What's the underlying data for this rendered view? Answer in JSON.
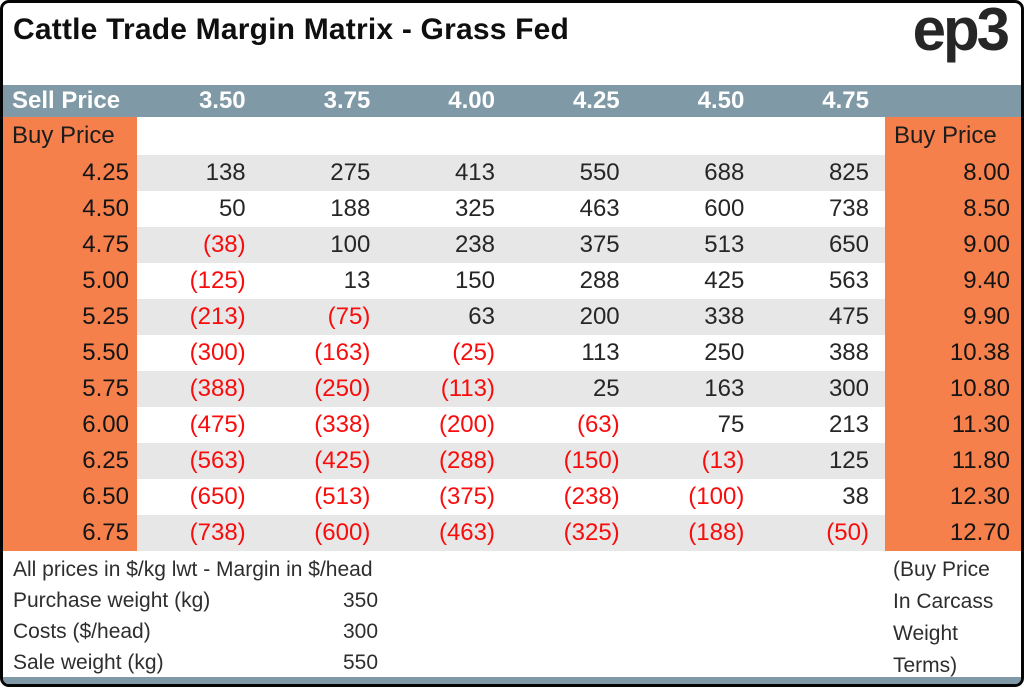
{
  "title": "Cattle Trade Margin Matrix - Grass Fed",
  "logo": "ep3",
  "chart_data": {
    "type": "table",
    "title": "Cattle Trade Margin Matrix - Grass Fed",
    "corner_label": "Sell Price",
    "left_axis_label": "Buy Price",
    "right_axis_label": "Buy Price",
    "sell_prices": [
      "3.50",
      "3.75",
      "4.00",
      "4.25",
      "4.50",
      "4.75"
    ],
    "rows": [
      {
        "buy": "4.25",
        "values": [
          "138",
          "275",
          "413",
          "550",
          "688",
          "825"
        ],
        "carcass": "8.00"
      },
      {
        "buy": "4.50",
        "values": [
          "50",
          "188",
          "325",
          "463",
          "600",
          "738"
        ],
        "carcass": "8.50"
      },
      {
        "buy": "4.75",
        "values": [
          "(38)",
          "100",
          "238",
          "375",
          "513",
          "650"
        ],
        "carcass": "9.00"
      },
      {
        "buy": "5.00",
        "values": [
          "(125)",
          "13",
          "150",
          "288",
          "425",
          "563"
        ],
        "carcass": "9.40"
      },
      {
        "buy": "5.25",
        "values": [
          "(213)",
          "(75)",
          "63",
          "200",
          "338",
          "475"
        ],
        "carcass": "9.90"
      },
      {
        "buy": "5.50",
        "values": [
          "(300)",
          "(163)",
          "(25)",
          "113",
          "250",
          "388"
        ],
        "carcass": "10.38"
      },
      {
        "buy": "5.75",
        "values": [
          "(388)",
          "(250)",
          "(113)",
          "25",
          "163",
          "300"
        ],
        "carcass": "10.80"
      },
      {
        "buy": "6.00",
        "values": [
          "(475)",
          "(338)",
          "(200)",
          "(63)",
          "75",
          "213"
        ],
        "carcass": "11.30"
      },
      {
        "buy": "6.25",
        "values": [
          "(563)",
          "(425)",
          "(288)",
          "(150)",
          "(13)",
          "125"
        ],
        "carcass": "11.80"
      },
      {
        "buy": "6.50",
        "values": [
          "(650)",
          "(513)",
          "(375)",
          "(238)",
          "(100)",
          "38"
        ],
        "carcass": "12.30"
      },
      {
        "buy": "6.75",
        "values": [
          "(738)",
          "(600)",
          "(463)",
          "(325)",
          "(188)",
          "(50)"
        ],
        "carcass": "12.70"
      }
    ]
  },
  "footer": {
    "note": "All prices in $/kg lwt - Margin in $/head",
    "params": [
      {
        "label": "Purchase weight (kg)",
        "value": "350"
      },
      {
        "label": "Costs ($/head)",
        "value": "300"
      },
      {
        "label": "Sale weight (kg)",
        "value": "550"
      }
    ],
    "right_note_lines": [
      "(Buy Price",
      "In Carcass",
      "Weight",
      "Terms)"
    ]
  },
  "colors": {
    "header_slate": "#7f99a6",
    "accent_orange": "#f5804c",
    "stripe_gray": "#e7e7e7",
    "negative_red": "#f80c0c",
    "border_black": "#050505"
  }
}
